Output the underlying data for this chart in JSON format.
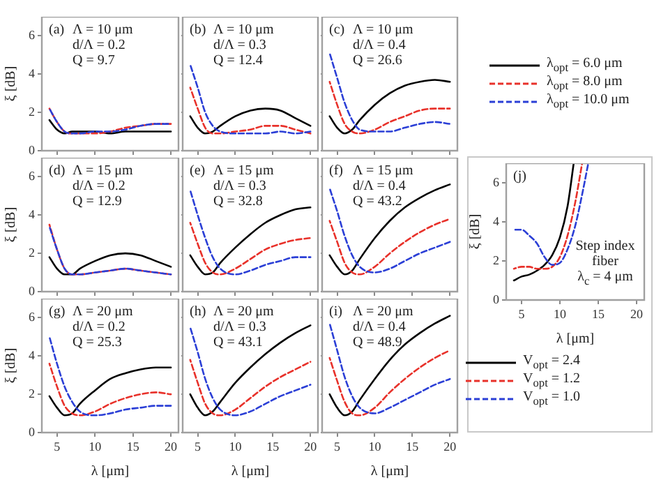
{
  "chart_data": [
    {
      "type": "line",
      "ylabel": "ξ [dB]",
      "annotations": [
        "(a)",
        "Λ = 10 μm",
        "d/Λ = 0.2",
        "Q = 9.7"
      ],
      "xlim": [
        3,
        21
      ],
      "ylim": [
        0,
        7
      ],
      "xticks": [
        5,
        10,
        15,
        20
      ],
      "yticks": [
        0,
        2,
        4,
        6
      ],
      "tick_labels": "y",
      "grid": false,
      "x": [
        4,
        5,
        6,
        7,
        8,
        10,
        12,
        14,
        16,
        18,
        20
      ],
      "series": [
        {
          "color": "#000000",
          "line_style": "solid",
          "values": [
            1.6,
            1.1,
            0.9,
            1.0,
            1.0,
            1.0,
            0.9,
            1.0,
            1.0,
            1.0,
            1.0
          ]
        },
        {
          "color": "#e8312a",
          "line_style": "dashed",
          "values": [
            2.2,
            1.5,
            1.0,
            0.9,
            0.9,
            0.9,
            1.0,
            1.2,
            1.3,
            1.4,
            1.4
          ]
        },
        {
          "color": "#2b3fd6",
          "line_style": "dashed",
          "values": [
            2.2,
            1.5,
            1.0,
            0.9,
            0.9,
            1.0,
            1.0,
            1.1,
            1.3,
            1.4,
            1.4
          ]
        }
      ]
    },
    {
      "type": "line",
      "annotations": [
        "(b)",
        "Λ = 10 μm",
        "d/Λ = 0.3",
        "Q = 12.4"
      ],
      "xlim": [
        3,
        21
      ],
      "ylim": [
        0,
        7
      ],
      "xticks": [
        5,
        10,
        15,
        20
      ],
      "yticks": [
        0,
        2,
        4,
        6
      ],
      "tick_labels": false,
      "grid": false,
      "x": [
        4,
        5,
        6,
        7,
        8,
        10,
        12,
        14,
        16,
        18,
        20
      ],
      "series": [
        {
          "color": "#000000",
          "line_style": "solid",
          "values": [
            1.8,
            1.2,
            0.9,
            1.0,
            1.3,
            1.8,
            2.1,
            2.2,
            2.1,
            1.7,
            1.3
          ]
        },
        {
          "color": "#e8312a",
          "line_style": "dashed",
          "values": [
            3.3,
            2.2,
            1.2,
            0.9,
            0.9,
            1.0,
            1.1,
            1.3,
            1.3,
            1.1,
            0.9
          ]
        },
        {
          "color": "#2b3fd6",
          "line_style": "dashed",
          "values": [
            4.5,
            3.3,
            2.0,
            1.3,
            1.0,
            0.9,
            0.9,
            0.9,
            1.0,
            0.9,
            1.0
          ]
        }
      ]
    },
    {
      "type": "line",
      "annotations": [
        "(c)",
        "Λ = 10 μm",
        "d/Λ = 0.4",
        "Q = 26.6"
      ],
      "xlim": [
        3,
        21
      ],
      "ylim": [
        0,
        7
      ],
      "xticks": [
        5,
        10,
        15,
        20
      ],
      "yticks": [
        0,
        2,
        4,
        6
      ],
      "tick_labels": false,
      "grid": false,
      "legend": "right",
      "x": [
        4,
        5,
        6,
        7,
        8,
        10,
        12,
        14,
        16,
        18,
        20
      ],
      "series": [
        {
          "name": "λ$_{opt}$ = 6.0 μm",
          "color": "#000000",
          "line_style": "solid",
          "values": [
            1.8,
            1.2,
            0.9,
            1.1,
            1.6,
            2.4,
            3.0,
            3.4,
            3.6,
            3.7,
            3.6
          ]
        },
        {
          "name": "λ$_{opt}$ = 8.0 μm",
          "color": "#e8312a",
          "line_style": "dashed",
          "values": [
            3.6,
            2.4,
            1.4,
            1.0,
            0.9,
            1.1,
            1.5,
            1.8,
            2.1,
            2.2,
            2.2
          ]
        },
        {
          "name": "λ$_{opt}$ = 10.0 μm",
          "color": "#2b3fd6",
          "line_style": "dashed",
          "values": [
            5.1,
            3.8,
            2.5,
            1.6,
            1.1,
            1.0,
            1.0,
            1.2,
            1.4,
            1.5,
            1.4
          ]
        }
      ]
    },
    {
      "type": "line",
      "ylabel": "ξ [dB]",
      "annotations": [
        "(d)",
        "Λ = 15 μm",
        "d/Λ = 0.2",
        "Q = 12.9"
      ],
      "xlim": [
        3,
        21
      ],
      "ylim": [
        0,
        7
      ],
      "xticks": [
        5,
        10,
        15,
        20
      ],
      "yticks": [
        0,
        2,
        4,
        6
      ],
      "tick_labels": "y",
      "grid": false,
      "x": [
        4,
        5,
        6,
        7,
        8,
        10,
        12,
        14,
        16,
        18,
        20
      ],
      "series": [
        {
          "color": "#000000",
          "line_style": "solid",
          "values": [
            1.8,
            1.2,
            0.9,
            0.9,
            1.2,
            1.6,
            1.9,
            2.0,
            1.9,
            1.6,
            1.3
          ]
        },
        {
          "color": "#e8312a",
          "line_style": "dashed",
          "values": [
            3.5,
            2.2,
            1.2,
            0.9,
            0.9,
            1.0,
            1.1,
            1.2,
            1.1,
            1.0,
            0.9
          ]
        },
        {
          "color": "#2b3fd6",
          "line_style": "dashed",
          "values": [
            3.4,
            2.2,
            1.2,
            0.9,
            0.9,
            1.0,
            1.1,
            1.2,
            1.1,
            1.0,
            0.9
          ]
        }
      ]
    },
    {
      "type": "line",
      "annotations": [
        "(e)",
        "Λ = 15 μm",
        "d/Λ = 0.3",
        "Q = 32.8"
      ],
      "xlim": [
        3,
        21
      ],
      "ylim": [
        0,
        7
      ],
      "xticks": [
        5,
        10,
        15,
        20
      ],
      "yticks": [
        0,
        2,
        4,
        6
      ],
      "tick_labels": false,
      "grid": false,
      "x": [
        4,
        5,
        6,
        7,
        8,
        10,
        12,
        14,
        16,
        18,
        20
      ],
      "series": [
        {
          "color": "#000000",
          "line_style": "solid",
          "values": [
            1.9,
            1.3,
            0.9,
            1.0,
            1.5,
            2.3,
            3.0,
            3.6,
            4.0,
            4.3,
            4.4
          ]
        },
        {
          "color": "#e8312a",
          "line_style": "dashed",
          "values": [
            3.6,
            2.5,
            1.5,
            1.0,
            0.9,
            1.2,
            1.7,
            2.2,
            2.5,
            2.7,
            2.8
          ]
        },
        {
          "color": "#2b3fd6",
          "line_style": "dashed",
          "values": [
            5.3,
            4.0,
            2.8,
            1.8,
            1.2,
            0.9,
            1.1,
            1.4,
            1.6,
            1.8,
            1.8
          ]
        }
      ]
    },
    {
      "type": "line",
      "annotations": [
        "(f)",
        "Λ = 15 μm",
        "d/Λ = 0.4",
        "Q = 43.2"
      ],
      "xlim": [
        3,
        21
      ],
      "ylim": [
        0,
        7
      ],
      "xticks": [
        5,
        10,
        15,
        20
      ],
      "yticks": [
        0,
        2,
        4,
        6
      ],
      "tick_labels": false,
      "grid": false,
      "x": [
        4,
        5,
        6,
        7,
        8,
        10,
        12,
        14,
        16,
        18,
        20
      ],
      "series": [
        {
          "color": "#000000",
          "line_style": "solid",
          "values": [
            1.9,
            1.3,
            0.9,
            1.1,
            1.7,
            2.8,
            3.7,
            4.4,
            4.9,
            5.3,
            5.6
          ]
        },
        {
          "color": "#e8312a",
          "line_style": "dashed",
          "values": [
            3.7,
            2.6,
            1.5,
            1.0,
            0.9,
            1.3,
            2.0,
            2.6,
            3.1,
            3.5,
            3.8
          ]
        },
        {
          "color": "#2b3fd6",
          "line_style": "dashed",
          "values": [
            5.4,
            4.2,
            2.9,
            1.9,
            1.3,
            1.0,
            1.2,
            1.6,
            2.0,
            2.3,
            2.6
          ]
        }
      ]
    },
    {
      "type": "line",
      "xlabel": "λ [μm]",
      "ylabel": "ξ [dB]",
      "annotations": [
        "(g)",
        "Λ = 20 μm",
        "d/Λ = 0.2",
        "Q = 25.3"
      ],
      "xlim": [
        3,
        21
      ],
      "ylim": [
        0,
        7
      ],
      "xticks": [
        5,
        10,
        15,
        20
      ],
      "yticks": [
        0,
        2,
        4,
        6
      ],
      "grid": false,
      "x": [
        4,
        5,
        6,
        7,
        8,
        10,
        12,
        14,
        16,
        18,
        20
      ],
      "series": [
        {
          "color": "#000000",
          "line_style": "solid",
          "values": [
            1.9,
            1.3,
            0.9,
            1.0,
            1.5,
            2.2,
            2.8,
            3.1,
            3.3,
            3.4,
            3.4
          ]
        },
        {
          "color": "#e8312a",
          "line_style": "dashed",
          "values": [
            3.6,
            2.4,
            1.4,
            1.0,
            0.9,
            1.1,
            1.5,
            1.8,
            2.0,
            2.1,
            2.0
          ]
        },
        {
          "color": "#2b3fd6",
          "line_style": "dashed",
          "values": [
            5.0,
            3.6,
            2.4,
            1.6,
            1.1,
            0.9,
            1.0,
            1.2,
            1.3,
            1.4,
            1.4
          ]
        }
      ]
    },
    {
      "type": "line",
      "xlabel": "λ [μm]",
      "annotations": [
        "(h)",
        "Λ = 20 μm",
        "d/Λ = 0.3",
        "Q = 43.1"
      ],
      "xlim": [
        3,
        21
      ],
      "ylim": [
        0,
        7
      ],
      "xticks": [
        5,
        10,
        15,
        20
      ],
      "yticks": [
        0,
        2,
        4,
        6
      ],
      "tick_labels": "x",
      "grid": false,
      "x": [
        4,
        5,
        6,
        7,
        8,
        10,
        12,
        14,
        16,
        18,
        20
      ],
      "series": [
        {
          "color": "#000000",
          "line_style": "solid",
          "values": [
            2.0,
            1.3,
            0.9,
            1.1,
            1.6,
            2.6,
            3.4,
            4.1,
            4.7,
            5.2,
            5.6
          ]
        },
        {
          "color": "#e8312a",
          "line_style": "dashed",
          "values": [
            3.8,
            2.6,
            1.5,
            1.0,
            0.9,
            1.2,
            1.8,
            2.4,
            2.9,
            3.3,
            3.7
          ]
        },
        {
          "color": "#2b3fd6",
          "line_style": "dashed",
          "values": [
            5.5,
            4.2,
            2.8,
            1.8,
            1.2,
            0.9,
            1.1,
            1.5,
            1.9,
            2.2,
            2.5
          ]
        }
      ]
    },
    {
      "type": "line",
      "xlabel": "λ [μm]",
      "annotations": [
        "(i)",
        "Λ = 20 μm",
        "d/Λ = 0.4",
        "Q = 48.9"
      ],
      "xlim": [
        3,
        21
      ],
      "ylim": [
        0,
        7
      ],
      "xticks": [
        5,
        10,
        15,
        20
      ],
      "yticks": [
        0,
        2,
        4,
        6
      ],
      "tick_labels": "x",
      "grid": false,
      "x": [
        4,
        5,
        6,
        7,
        8,
        10,
        12,
        14,
        16,
        18,
        20
      ],
      "series": [
        {
          "color": "#000000",
          "line_style": "solid",
          "values": [
            2.0,
            1.3,
            0.9,
            1.1,
            1.7,
            2.8,
            3.8,
            4.6,
            5.2,
            5.7,
            6.1
          ]
        },
        {
          "color": "#e8312a",
          "line_style": "dashed",
          "values": [
            3.9,
            2.7,
            1.6,
            1.0,
            0.9,
            1.3,
            2.1,
            2.8,
            3.4,
            3.9,
            4.3
          ]
        },
        {
          "color": "#2b3fd6",
          "line_style": "dashed",
          "values": [
            5.7,
            4.3,
            2.9,
            1.9,
            1.3,
            1.0,
            1.3,
            1.7,
            2.1,
            2.5,
            2.8
          ]
        }
      ]
    },
    {
      "type": "line",
      "xlabel": "λ [μm]",
      "ylabel": "ξ [dB]",
      "annotations": [
        "(j)",
        "Step index fiber",
        "λ$_{c}$ = 4 μm"
      ],
      "xlim": [
        3,
        21
      ],
      "ylim": [
        0,
        7
      ],
      "xticks": [
        5,
        10,
        15,
        20
      ],
      "yticks": [
        0,
        2,
        4,
        6
      ],
      "grid": false,
      "legend": "bottom",
      "series": [
        {
          "name": "V$_{opt}$ = 2.4",
          "color": "#000000",
          "line_style": "solid",
          "x": [
            4,
            5,
            6,
            7,
            8,
            9,
            10,
            11,
            11.8
          ],
          "values": [
            1.0,
            1.2,
            1.3,
            1.5,
            1.8,
            2.3,
            3.2,
            4.8,
            7.0
          ]
        },
        {
          "name": "V$_{opt}$ = 1.2",
          "color": "#e8312a",
          "line_style": "dashed",
          "x": [
            4,
            5,
            6,
            7,
            8,
            9,
            10,
            11,
            12,
            12.9
          ],
          "values": [
            1.6,
            1.7,
            1.7,
            1.6,
            1.6,
            1.7,
            2.2,
            3.3,
            5.0,
            7.0
          ]
        },
        {
          "name": "V$_{opt}$ = 1.0",
          "color": "#2b3fd6",
          "line_style": "dashed",
          "x": [
            4,
            5,
            6,
            7,
            8,
            9,
            10,
            11,
            12,
            13,
            13.7
          ],
          "values": [
            3.6,
            3.6,
            3.3,
            2.9,
            2.2,
            1.8,
            1.9,
            2.6,
            3.8,
            5.6,
            7.0
          ]
        }
      ]
    }
  ]
}
